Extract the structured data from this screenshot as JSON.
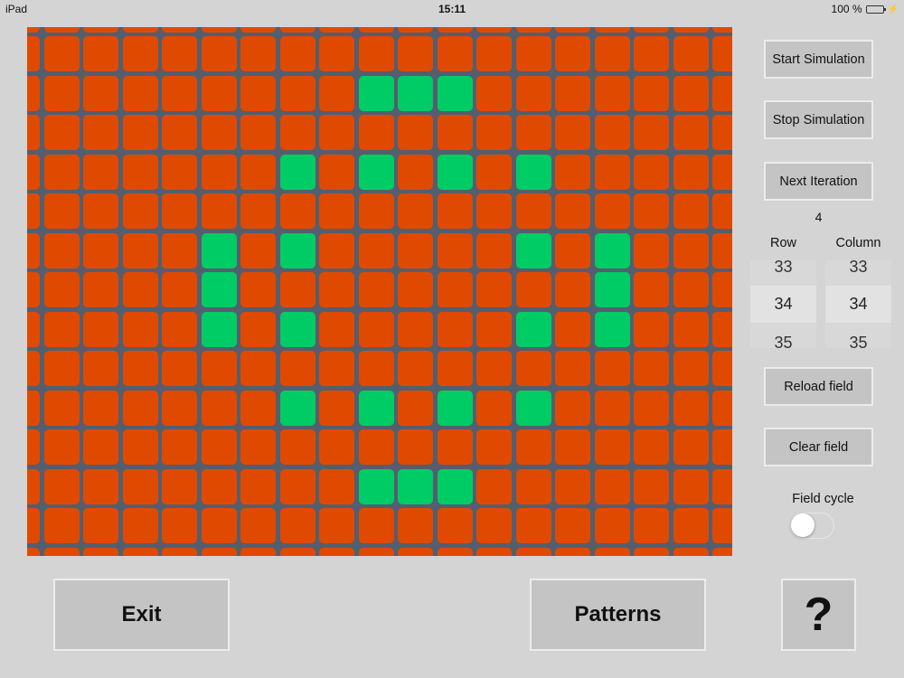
{
  "status_bar": {
    "device": "iPad",
    "time": "15:11",
    "battery": "100 %",
    "battery_level": 1.0
  },
  "grid": {
    "colors": {
      "dead": "#e04a00",
      "alive": "#00cc66",
      "background": "#555e6e"
    },
    "rows": 14,
    "cols": 19,
    "alive_cells": [
      [
        1,
        8
      ],
      [
        1,
        9
      ],
      [
        1,
        10
      ],
      [
        3,
        6
      ],
      [
        3,
        8
      ],
      [
        3,
        10
      ],
      [
        3,
        12
      ],
      [
        5,
        4
      ],
      [
        5,
        6
      ],
      [
        5,
        12
      ],
      [
        5,
        14
      ],
      [
        6,
        4
      ],
      [
        6,
        14
      ],
      [
        7,
        4
      ],
      [
        7,
        6
      ],
      [
        7,
        12
      ],
      [
        7,
        14
      ],
      [
        9,
        6
      ],
      [
        9,
        8
      ],
      [
        9,
        10
      ],
      [
        9,
        12
      ],
      [
        11,
        8
      ],
      [
        11,
        9
      ],
      [
        11,
        10
      ]
    ]
  },
  "controls": {
    "start_label": "Start Simulation",
    "stop_label": "Stop Simulation",
    "next_label": "Next Iteration",
    "iteration_count": "4",
    "row_label": "Row",
    "column_label": "Column",
    "row_picker": {
      "prev": "33",
      "selected": "34",
      "next": "35"
    },
    "column_picker": {
      "prev": "33",
      "selected": "34",
      "next": "35"
    },
    "reload_label": "Reload field",
    "clear_label": "Clear field",
    "cycle_label": "Field cycle",
    "cycle_on": false
  },
  "bottom": {
    "exit_label": "Exit",
    "patterns_label": "Patterns",
    "help_label": "?"
  }
}
